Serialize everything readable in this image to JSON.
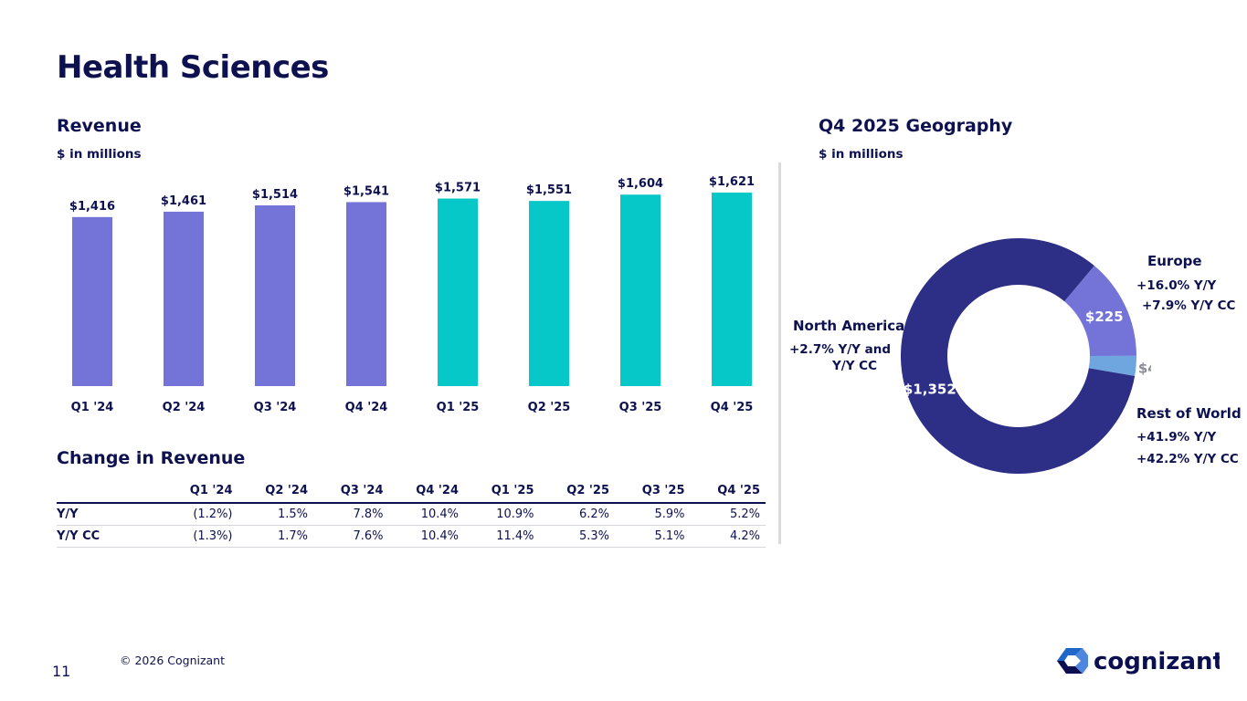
{
  "page": {
    "title": "Health Sciences",
    "page_number": "11",
    "copyright": "© 2026 Cognizant",
    "logo_text": "cognizant"
  },
  "revenue": {
    "title": "Revenue",
    "units": "$ in millions"
  },
  "geography": {
    "title": "Q4 2025 Geography",
    "units": "$ in millions",
    "north_america": {
      "label": "North America",
      "line1": "+2.7%  Y/Y and",
      "line2": "Y/Y CC"
    },
    "europe": {
      "label": "Europe",
      "line1": "+16.0%  Y/Y",
      "line2": "+7.9%  Y/Y CC"
    },
    "rest_of_world": {
      "label": "Rest of World",
      "line1": "+41.9%  Y/Y",
      "line2": "+42.2% Y/Y CC"
    }
  },
  "change": {
    "title": "Change in Revenue",
    "headers": [
      "Q1 '24",
      "Q2 '24",
      "Q3 '24",
      "Q4 '24",
      "Q1 '25",
      "Q2 '25",
      "Q3 '25",
      "Q4 '25"
    ],
    "rows": [
      {
        "label": "Y/Y",
        "values": [
          "(1.2%)",
          "1.5%",
          "7.8%",
          "10.4%",
          "10.9%",
          "6.2%",
          "5.9%",
          "5.2%"
        ]
      },
      {
        "label": "Y/Y CC",
        "values": [
          "(1.3%)",
          "1.7%",
          "7.6%",
          "10.4%",
          "11.4%",
          "5.3%",
          "5.1%",
          "4.2%"
        ]
      }
    ]
  },
  "colors": {
    "bar_2024": "#7474d8",
    "bar_2025": "#07c8c8",
    "north_america": "#2d2f87",
    "europe": "#7474d8",
    "rest_of_world": "#6fa6e0",
    "text": "#0e1150"
  },
  "chart_data": [
    {
      "type": "bar",
      "title": "Revenue",
      "categories": [
        "Q1 '24",
        "Q2 '24",
        "Q3 '24",
        "Q4 '24",
        "Q1 '25",
        "Q2 '25",
        "Q3 '25",
        "Q4 '25"
      ],
      "values": [
        1416,
        1461,
        1514,
        1541,
        1571,
        1551,
        1604,
        1621
      ],
      "value_labels": [
        "$1,416",
        "$1,461",
        "$1,514",
        "$1,541",
        "$1,571",
        "$1,551",
        "$1,604",
        "$1,621"
      ],
      "xlabel": "",
      "ylabel": "",
      "ylim": [
        0,
        1621
      ],
      "grid": false
    },
    {
      "type": "pie",
      "title": "Q4 2025 Geography",
      "style": "donut",
      "labels": [
        "North America",
        "Europe",
        "Rest of World"
      ],
      "values": [
        1352,
        225,
        44
      ],
      "value_labels": [
        "$1,352",
        "$225",
        "$44"
      ]
    }
  ]
}
